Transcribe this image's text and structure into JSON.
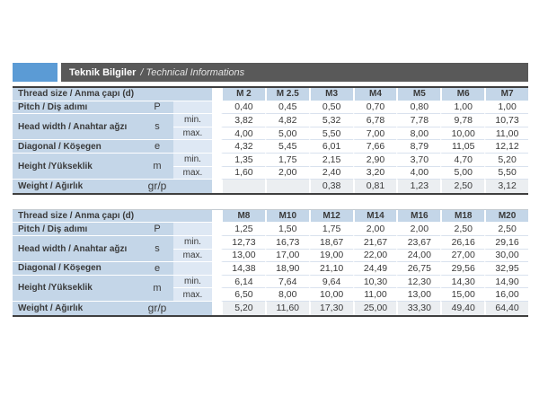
{
  "title_bar": {
    "title_tr": "Teknik Bilgiler",
    "title_en": "/ Technical Informations"
  },
  "labels": {
    "thread_size": "Thread size / Anma çapı (d)",
    "pitch": "Pitch / Diş adımı",
    "head_width": "Head width / Anahtar ağzı",
    "diagonal": "Diagonal / Köşegen",
    "height": "Height /Yükseklik",
    "weight": "Weight / Ağırlık",
    "min": "min.",
    "max": "max.",
    "symbols": {
      "pitch": "P",
      "head_width": "s",
      "diagonal": "e",
      "height": "m",
      "weight": "gr/p"
    }
  },
  "colors": {
    "accent_blue": "#5b9bd5",
    "bar_dark": "#595959",
    "cell_blue": "#c4d6e8",
    "cell_blue_light": "#dee8f4",
    "weight_row_tint": "#ebeef1",
    "row_separator": "#d9e2ee",
    "dark_border": "#3f3f3f"
  },
  "tables": [
    {
      "columns": [
        "M 2",
        "M 2.5",
        "M3",
        "M4",
        "M5",
        "M6",
        "M7"
      ],
      "rows": {
        "pitch": [
          "0,40",
          "0,45",
          "0,50",
          "0,70",
          "0,80",
          "1,00",
          "1,00"
        ],
        "head_min": [
          "3,82",
          "4,82",
          "5,32",
          "6,78",
          "7,78",
          "9,78",
          "10,73"
        ],
        "head_max": [
          "4,00",
          "5,00",
          "5,50",
          "7,00",
          "8,00",
          "10,00",
          "11,00"
        ],
        "diagonal": [
          "4,32",
          "5,45",
          "6,01",
          "7,66",
          "8,79",
          "11,05",
          "12,12"
        ],
        "height_min": [
          "1,35",
          "1,75",
          "2,15",
          "2,90",
          "3,70",
          "4,70",
          "5,20"
        ],
        "height_max": [
          "1,60",
          "2,00",
          "2,40",
          "3,20",
          "4,00",
          "5,00",
          "5,50"
        ],
        "weight": [
          "",
          "",
          "0,38",
          "0,81",
          "1,23",
          "2,50",
          "3,12"
        ]
      }
    },
    {
      "columns": [
        "M8",
        "M10",
        "M12",
        "M14",
        "M16",
        "M18",
        "M20"
      ],
      "rows": {
        "pitch": [
          "1,25",
          "1,50",
          "1,75",
          "2,00",
          "2,00",
          "2,50",
          "2,50"
        ],
        "head_min": [
          "12,73",
          "16,73",
          "18,67",
          "21,67",
          "23,67",
          "26,16",
          "29,16"
        ],
        "head_max": [
          "13,00",
          "17,00",
          "19,00",
          "22,00",
          "24,00",
          "27,00",
          "30,00"
        ],
        "diagonal": [
          "14,38",
          "18,90",
          "21,10",
          "24,49",
          "26,75",
          "29,56",
          "32,95"
        ],
        "height_min": [
          "6,14",
          "7,64",
          "9,64",
          "10,30",
          "12,30",
          "14,30",
          "14,90"
        ],
        "height_max": [
          "6,50",
          "8,00",
          "10,00",
          "11,00",
          "13,00",
          "15,00",
          "16,00"
        ],
        "weight": [
          "5,20",
          "11,60",
          "17,30",
          "25,00",
          "33,30",
          "49,40",
          "64,40"
        ]
      }
    }
  ]
}
